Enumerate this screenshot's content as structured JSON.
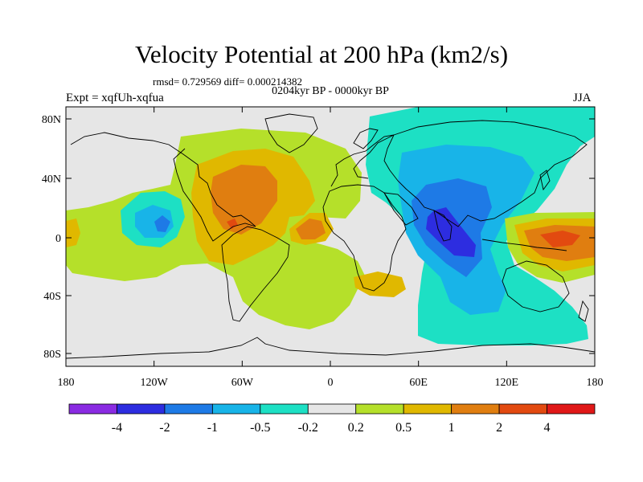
{
  "title": "Velocity Potential at 200 hPa (km2/s)",
  "stats_line": "rmsd= 0.729569 diff= 0.000214382",
  "period_line": "0204kyr BP - 0000kyr BP",
  "experiment_line": "Expt = xqfUh-xqfua",
  "season": "JJA",
  "lat_labels": [
    "80N",
    "40N",
    "0",
    "40S",
    "80S"
  ],
  "lon_labels": [
    "180",
    "120W",
    "60W",
    "0",
    "60E",
    "120E",
    "180"
  ],
  "colorbar": {
    "colors": [
      "#8a2be2",
      "#2d2de0",
      "#1e7ae6",
      "#18b4e8",
      "#1de0c4",
      "#e6e6e6",
      "#b5e02a",
      "#e0b800",
      "#e07e10",
      "#e24a10",
      "#e01818"
    ],
    "labels": [
      "-4",
      "-2",
      "-1",
      "-0.5",
      "-0.2",
      "0.2",
      "0.5",
      "1",
      "2",
      "4"
    ]
  },
  "colors": {
    "background_field": "#e6e6e6",
    "coastline": "#000000"
  }
}
